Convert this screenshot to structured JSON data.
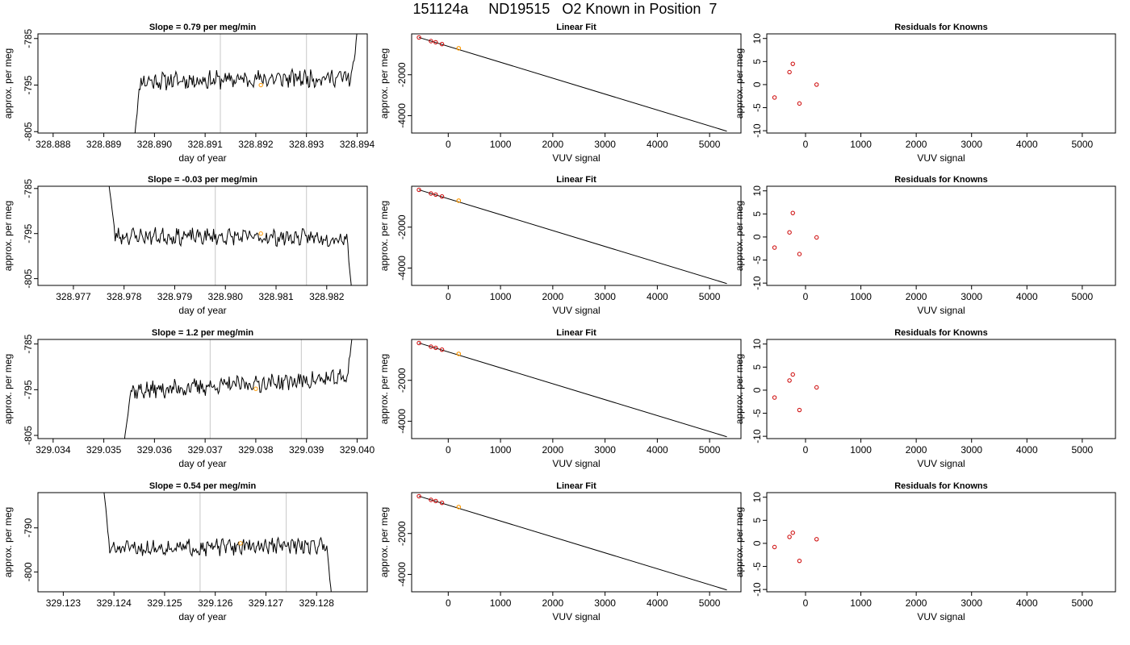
{
  "page": {
    "title": "151124a     ND19515   O2 Known in Position  7"
  },
  "chart_data": [
    {
      "type": "line",
      "panel": "time-series",
      "row": 1,
      "title": "Slope =  0.79  per meg/min",
      "xlabel": "day of year",
      "ylabel": "approx. per meg",
      "xlim": [
        328.8877,
        328.8942
      ],
      "ylim": [
        -805.3,
        -784.0
      ],
      "xticks": [
        "328.888",
        "328.889",
        "328.890",
        "328.891",
        "328.892",
        "328.893",
        "328.894"
      ],
      "yticks": [
        "-785",
        "-795",
        "-805"
      ],
      "vlines": [
        328.8913,
        328.893
      ],
      "marker": {
        "x": 328.8921,
        "y": -795.0
      },
      "series_params": {
        "start_x": 328.8896,
        "end_x": 328.894,
        "base": -794.2,
        "noise": 1.6,
        "trend": 0.9,
        "start_y": -807,
        "end_y": -783.5,
        "seed": 11
      }
    },
    {
      "type": "line",
      "panel": "linear-fit",
      "row": 1,
      "title": "Linear Fit",
      "xlabel": "VUV signal",
      "ylabel": "approx. per meg",
      "xlim": [
        -700,
        5600
      ],
      "ylim": [
        -4850,
        0
      ],
      "xticks": [
        "0",
        "1000",
        "2000",
        "3000",
        "4000",
        "5000"
      ],
      "yticks": [
        "-2000",
        "-4000"
      ],
      "line": {
        "x": [
          -560,
          5330
        ],
        "y": [
          -175,
          -4760
        ]
      },
      "known_points": [
        [
          -560,
          -175
        ],
        [
          -330,
          -355
        ],
        [
          -240,
          -410
        ],
        [
          -120,
          -500
        ]
      ],
      "highlight_point": [
        200,
        -705
      ]
    },
    {
      "type": "scatter",
      "panel": "residuals",
      "row": 1,
      "title": "Residuals for Knowns",
      "xlabel": "VUV signal",
      "ylabel": "approx. per meg",
      "xlim": [
        -700,
        5600
      ],
      "ylim": [
        -10.5,
        11
      ],
      "xticks": [
        "0",
        "1000",
        "2000",
        "3000",
        "4000",
        "5000"
      ],
      "yticks": [
        "10",
        "5",
        "0",
        "-5",
        "-10"
      ],
      "points": [
        [
          -560,
          -2.8
        ],
        [
          -290,
          2.7
        ],
        [
          -230,
          4.5
        ],
        [
          -110,
          -4.1
        ],
        [
          200,
          0.0
        ]
      ]
    },
    {
      "type": "line",
      "panel": "time-series",
      "row": 2,
      "title": "Slope =  -0.03  per meg/min",
      "xlabel": "day of year",
      "ylabel": "approx. per meg",
      "xlim": [
        328.9763,
        328.9828
      ],
      "ylim": [
        -806.5,
        -784.5
      ],
      "xticks": [
        "328.977",
        "328.978",
        "328.979",
        "328.980",
        "328.981",
        "328.982"
      ],
      "yticks": [
        "-785",
        "-795",
        "-805"
      ],
      "vlines": [
        328.9798,
        328.9816
      ],
      "marker": {
        "x": 328.9807,
        "y": -795.0
      },
      "series_params": {
        "start_x": 328.9777,
        "end_x": 328.9825,
        "base": -795.5,
        "noise": 1.5,
        "trend": -0.5,
        "start_y": -784,
        "end_y": -808,
        "seed": 23
      }
    },
    {
      "type": "line",
      "panel": "linear-fit",
      "row": 2,
      "title": "Linear Fit",
      "xlabel": "VUV signal",
      "ylabel": "approx. per meg",
      "xlim": [
        -700,
        5600
      ],
      "ylim": [
        -4850,
        0
      ],
      "xticks": [
        "0",
        "1000",
        "2000",
        "3000",
        "4000",
        "5000"
      ],
      "yticks": [
        "-2000",
        "-4000"
      ],
      "line": {
        "x": [
          -560,
          5330
        ],
        "y": [
          -175,
          -4760
        ]
      },
      "known_points": [
        [
          -560,
          -175
        ],
        [
          -330,
          -355
        ],
        [
          -240,
          -410
        ],
        [
          -120,
          -500
        ]
      ],
      "highlight_point": [
        200,
        -705
      ]
    },
    {
      "type": "scatter",
      "panel": "residuals",
      "row": 2,
      "title": "Residuals for Knowns",
      "xlabel": "VUV signal",
      "ylabel": "approx. per meg",
      "xlim": [
        -700,
        5600
      ],
      "ylim": [
        -10.5,
        11
      ],
      "xticks": [
        "0",
        "1000",
        "2000",
        "3000",
        "4000",
        "5000"
      ],
      "yticks": [
        "10",
        "5",
        "0",
        "-5",
        "-10"
      ],
      "points": [
        [
          -560,
          -2.3
        ],
        [
          -290,
          1.0
        ],
        [
          -230,
          5.2
        ],
        [
          -110,
          -3.7
        ],
        [
          200,
          -0.1
        ]
      ]
    },
    {
      "type": "line",
      "panel": "time-series",
      "row": 3,
      "title": "Slope =  1.2  per meg/min",
      "xlabel": "day of year",
      "ylabel": "approx. per meg",
      "xlim": [
        329.0337,
        329.0402
      ],
      "ylim": [
        -805.7,
        -784.0
      ],
      "xticks": [
        "329.034",
        "329.035",
        "329.036",
        "329.037",
        "329.038",
        "329.039",
        "329.040"
      ],
      "yticks": [
        "-785",
        "-795",
        "-805"
      ],
      "vlines": [
        329.0371,
        329.0389
      ],
      "marker": {
        "x": 329.038,
        "y": -794.8
      },
      "series_params": {
        "start_x": 329.0354,
        "end_x": 329.0399,
        "base": -795.4,
        "noise": 1.6,
        "trend": 3.0,
        "start_y": -807,
        "end_y": -783.5,
        "seed": 37
      }
    },
    {
      "type": "line",
      "panel": "linear-fit",
      "row": 3,
      "title": "Linear Fit",
      "xlabel": "VUV signal",
      "ylabel": "approx. per meg",
      "xlim": [
        -700,
        5600
      ],
      "ylim": [
        -4850,
        0
      ],
      "xticks": [
        "0",
        "1000",
        "2000",
        "3000",
        "4000",
        "5000"
      ],
      "yticks": [
        "-2000",
        "-4000"
      ],
      "line": {
        "x": [
          -560,
          5330
        ],
        "y": [
          -175,
          -4760
        ]
      },
      "known_points": [
        [
          -560,
          -175
        ],
        [
          -330,
          -355
        ],
        [
          -240,
          -410
        ],
        [
          -120,
          -500
        ]
      ],
      "highlight_point": [
        200,
        -705
      ]
    },
    {
      "type": "scatter",
      "panel": "residuals",
      "row": 3,
      "title": "Residuals for Knowns",
      "xlabel": "VUV signal",
      "ylabel": "approx. per meg",
      "xlim": [
        -700,
        5600
      ],
      "ylim": [
        -10.5,
        11
      ],
      "xticks": [
        "0",
        "1000",
        "2000",
        "3000",
        "4000",
        "5000"
      ],
      "yticks": [
        "10",
        "5",
        "0",
        "-5",
        "-10"
      ],
      "points": [
        [
          -560,
          -1.6
        ],
        [
          -290,
          2.1
        ],
        [
          -230,
          3.4
        ],
        [
          -110,
          -4.3
        ],
        [
          200,
          0.6
        ]
      ]
    },
    {
      "type": "line",
      "panel": "time-series",
      "row": 4,
      "title": "Slope =  0.54  per meg/min",
      "xlabel": "day of year",
      "ylabel": "approx. per meg",
      "xlim": [
        329.1225,
        329.129
      ],
      "ylim": [
        -804.5,
        -782.0
      ],
      "xticks": [
        "329.123",
        "329.124",
        "329.125",
        "329.126",
        "329.127",
        "329.128"
      ],
      "yticks": [
        "-790",
        "-800"
      ],
      "vlines": [
        329.1257,
        329.1274
      ],
      "marker": {
        "x": 329.1265,
        "y": -793.5
      },
      "series_params": {
        "start_x": 329.1238,
        "end_x": 329.1283,
        "base": -794.8,
        "noise": 1.5,
        "trend": 0.9,
        "start_y": -781.5,
        "end_y": -806,
        "seed": 51
      }
    },
    {
      "type": "line",
      "panel": "linear-fit",
      "row": 4,
      "title": "Linear Fit",
      "xlabel": "VUV signal",
      "ylabel": "approx. per meg",
      "xlim": [
        -700,
        5600
      ],
      "ylim": [
        -4850,
        0
      ],
      "xticks": [
        "0",
        "1000",
        "2000",
        "3000",
        "4000",
        "5000"
      ],
      "yticks": [
        "-2000",
        "-4000"
      ],
      "line": {
        "x": [
          -560,
          5330
        ],
        "y": [
          -175,
          -4760
        ]
      },
      "known_points": [
        [
          -560,
          -175
        ],
        [
          -330,
          -355
        ],
        [
          -240,
          -410
        ],
        [
          -120,
          -500
        ]
      ],
      "highlight_point": [
        200,
        -705
      ]
    },
    {
      "type": "scatter",
      "panel": "residuals",
      "row": 4,
      "title": "Residuals for Knowns",
      "xlabel": "VUV signal",
      "ylabel": "approx. per meg",
      "xlim": [
        -700,
        5600
      ],
      "ylim": [
        -10.5,
        11
      ],
      "xticks": [
        "0",
        "1000",
        "2000",
        "3000",
        "4000",
        "5000"
      ],
      "yticks": [
        "10",
        "5",
        "0",
        "-5",
        "-10"
      ],
      "points": [
        [
          -560,
          -0.8
        ],
        [
          -290,
          1.4
        ],
        [
          -230,
          2.3
        ],
        [
          -110,
          -3.8
        ],
        [
          200,
          0.9
        ]
      ]
    }
  ],
  "colors": {
    "line": "#000000",
    "vline": "#d0d0d0",
    "known_point": "#cc0000",
    "highlight": "#ff9900"
  }
}
